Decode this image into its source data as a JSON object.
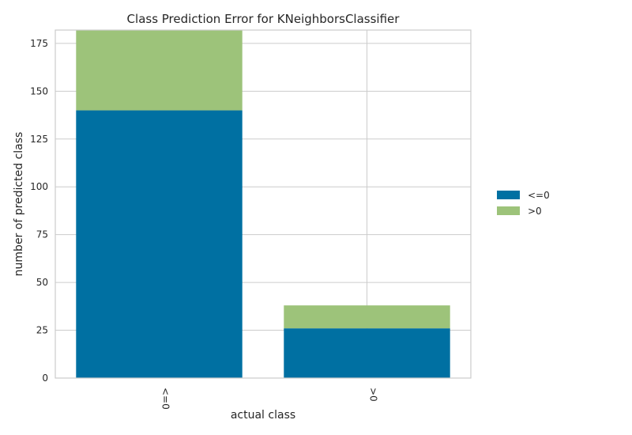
{
  "chart_data": {
    "type": "bar",
    "stacked": true,
    "title": "Class Prediction Error for KNeighborsClassifier",
    "xlabel": "actual class",
    "ylabel": "number of predicted class",
    "categories": [
      "<=0",
      ">0"
    ],
    "series": [
      {
        "name": "<=0",
        "color": "#0070a2",
        "values": [
          140,
          26
        ]
      },
      {
        "name": ">0",
        "color": "#9dc37a",
        "values": [
          42,
          12
        ]
      }
    ],
    "ylim": [
      0,
      182
    ],
    "yticks": [
      0,
      25,
      50,
      75,
      100,
      125,
      150,
      175
    ],
    "grid": true,
    "legend_position": "right"
  }
}
